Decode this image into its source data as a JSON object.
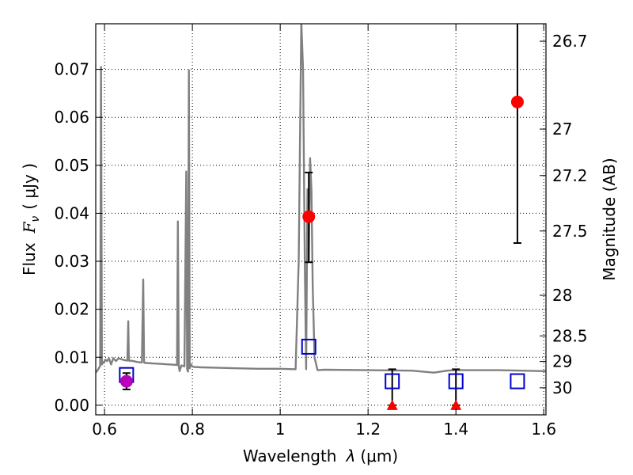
{
  "chart_data": {
    "type": "scatter",
    "title": "",
    "xlabel_prefix": "Wavelength",
    "xlabel_symbol": "λ",
    "xlabel_unit": "(μm)",
    "ylabel_prefix": "Flux",
    "ylabel_symbol": "F",
    "ylabel_subscript": "ν",
    "ylabel_unit": "( μJy )",
    "y2label": "Magnitude (AB)",
    "xlim": [
      0.58,
      1.605
    ],
    "ylim": [
      -0.002,
      0.0795
    ],
    "grid": true,
    "colors": {
      "spectrum": "#808080",
      "detection": "#ff0000",
      "alt_detection": "#bb00bb",
      "model": "#0000cc",
      "error": "#000000",
      "axis": "#000000"
    },
    "x_ticks": [
      {
        "value": 0.6,
        "label": "0.6"
      },
      {
        "value": 0.8,
        "label": "0.8"
      },
      {
        "value": 1.0,
        "label": "1"
      },
      {
        "value": 1.2,
        "label": "1.2"
      },
      {
        "value": 1.4,
        "label": "1.4"
      },
      {
        "value": 1.6,
        "label": "1.6"
      }
    ],
    "y_ticks": [
      {
        "value": 0.0,
        "label": "0.00"
      },
      {
        "value": 0.01,
        "label": "0.01"
      },
      {
        "value": 0.02,
        "label": "0.02"
      },
      {
        "value": 0.03,
        "label": "0.03"
      },
      {
        "value": 0.04,
        "label": "0.04"
      },
      {
        "value": 0.05,
        "label": "0.05"
      },
      {
        "value": 0.06,
        "label": "0.06"
      },
      {
        "value": 0.07,
        "label": "0.07"
      }
    ],
    "y2_ticks": [
      {
        "value": 26.7,
        "label": "26.7"
      },
      {
        "value": 27.0,
        "label": "27"
      },
      {
        "value": 27.2,
        "label": "27.2"
      },
      {
        "value": 27.5,
        "label": "27.5"
      },
      {
        "value": 28.0,
        "label": "28"
      },
      {
        "value": 28.5,
        "label": "28.5"
      },
      {
        "value": 29.0,
        "label": "29"
      },
      {
        "value": 30.0,
        "label": "30"
      }
    ],
    "spectrum": {
      "name": "model spectrum",
      "x": [
        0.58,
        0.585,
        0.59,
        0.592,
        0.594,
        0.596,
        0.598,
        0.602,
        0.606,
        0.61,
        0.615,
        0.62,
        0.626,
        0.632,
        0.638,
        0.645,
        0.652,
        0.654,
        0.6555,
        0.657,
        0.659,
        0.665,
        0.675,
        0.685,
        0.688,
        0.69,
        0.692,
        0.696,
        0.71,
        0.73,
        0.75,
        0.765,
        0.767,
        0.769,
        0.771,
        0.775,
        0.782,
        0.786,
        0.788,
        0.79,
        0.792,
        0.794,
        0.797,
        0.799,
        0.802,
        0.82,
        0.86,
        0.9,
        0.95,
        1.0,
        1.035,
        1.042,
        1.048,
        1.052,
        1.056,
        1.059,
        1.062,
        1.065,
        1.068,
        1.071,
        1.074,
        1.078,
        1.085,
        1.1,
        1.2,
        1.3,
        1.35,
        1.38,
        1.4,
        1.45,
        1.5,
        1.55,
        1.6,
        1.605
      ],
      "y": [
        0.0068,
        0.0074,
        0.0082,
        0.0705,
        0.0085,
        0.009,
        0.0088,
        0.0095,
        0.0092,
        0.0098,
        0.0085,
        0.0098,
        0.0092,
        0.0098,
        0.0096,
        0.0094,
        0.0093,
        0.0175,
        0.0094,
        0.0092,
        0.0093,
        0.0092,
        0.009,
        0.0089,
        0.0262,
        0.0089,
        0.0088,
        0.0088,
        0.0087,
        0.0086,
        0.0085,
        0.0084,
        0.0383,
        0.0082,
        0.0071,
        0.0083,
        0.0081,
        0.0487,
        0.0075,
        0.007,
        0.0698,
        0.0077,
        0.0085,
        0.0082,
        0.008,
        0.0079,
        0.0078,
        0.0077,
        0.0076,
        0.0076,
        0.0075,
        0.03,
        0.08,
        0.07,
        0.03,
        0.0075,
        0.045,
        0.03,
        0.0515,
        0.045,
        0.025,
        0.01,
        0.0073,
        0.0074,
        0.0073,
        0.0072,
        0.0068,
        0.0072,
        0.0073,
        0.0073,
        0.0073,
        0.0072,
        0.0071,
        0.0071
      ]
    },
    "detections": [
      {
        "name": "detection 1.065um",
        "x": 1.065,
        "y": 0.0393,
        "yerr_low": 0.0298,
        "yerr_high": 0.0485,
        "color": "detection"
      },
      {
        "name": "detection 1.54um",
        "x": 1.54,
        "y": 0.0632,
        "yerr_low": 0.0338,
        "yerr_high": 0.0795,
        "color": "detection"
      },
      {
        "name": "detection 0.65um",
        "x": 0.65,
        "y": 0.005,
        "yerr_low": 0.0033,
        "yerr_high": 0.0067,
        "color": "alt_detection"
      }
    ],
    "upper_limits": [
      {
        "name": "upper limit 1.255um",
        "x": 1.255,
        "y": 0.0,
        "yerr_high": 0.0075
      },
      {
        "name": "upper limit 1.40um",
        "x": 1.4,
        "y": 0.0,
        "yerr_high": 0.0075
      }
    ],
    "model_points": [
      {
        "name": "model 0.65um",
        "x": 0.65,
        "y": 0.0063
      },
      {
        "name": "model 1.065um",
        "x": 1.065,
        "y": 0.0122
      },
      {
        "name": "model 1.255um",
        "x": 1.255,
        "y": 0.005
      },
      {
        "name": "model 1.40um",
        "x": 1.4,
        "y": 0.005
      },
      {
        "name": "model 1.54um",
        "x": 1.54,
        "y": 0.005
      }
    ]
  }
}
